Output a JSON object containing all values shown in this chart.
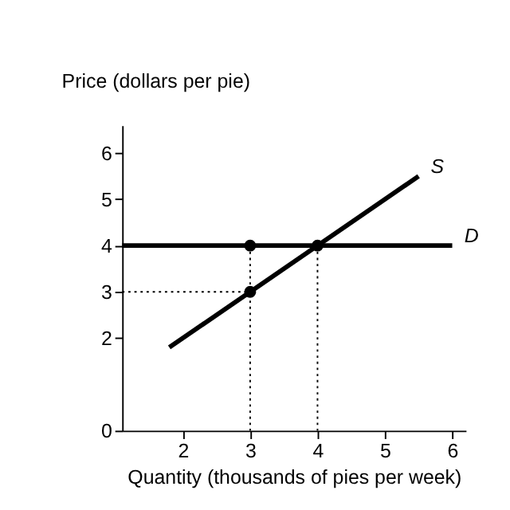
{
  "chart_data": {
    "type": "line",
    "xlabel": "Quantity (thousands of pies per week)",
    "ylabel": "Price (dollars per pie)",
    "xlim": [
      1.1,
      6.2
    ],
    "ylim": [
      0,
      6.6
    ],
    "xticks": [
      2,
      3,
      4,
      5,
      6
    ],
    "yticks": [
      0,
      2,
      3,
      4,
      5,
      6
    ],
    "grid": false,
    "series": [
      {
        "name": "S",
        "color": "#000000",
        "x": [
          1.8,
          5.5
        ],
        "values": [
          1.8,
          5.5
        ],
        "marker": "none",
        "line_style": "solid"
      },
      {
        "name": "D",
        "color": "#000000",
        "x": [
          1.1,
          6.0
        ],
        "values": [
          4,
          4
        ],
        "marker": "none",
        "line_style": "solid"
      },
      {
        "color": "#000000",
        "x": [
          1.1,
          3
        ],
        "values": [
          3,
          3
        ],
        "marker": "none",
        "line_style": "dotted"
      },
      {
        "color": "#000000",
        "x": [
          3,
          3
        ],
        "values": [
          4,
          0
        ],
        "marker": "none",
        "line_style": "dotted"
      },
      {
        "color": "#000000",
        "x": [
          4,
          4
        ],
        "values": [
          4,
          0
        ],
        "marker": "none",
        "line_style": "dotted"
      },
      {
        "type": "scatter",
        "color": "#000000",
        "x": [
          3,
          4,
          3
        ],
        "values": [
          4,
          4,
          3
        ],
        "marker": "circle"
      }
    ]
  }
}
